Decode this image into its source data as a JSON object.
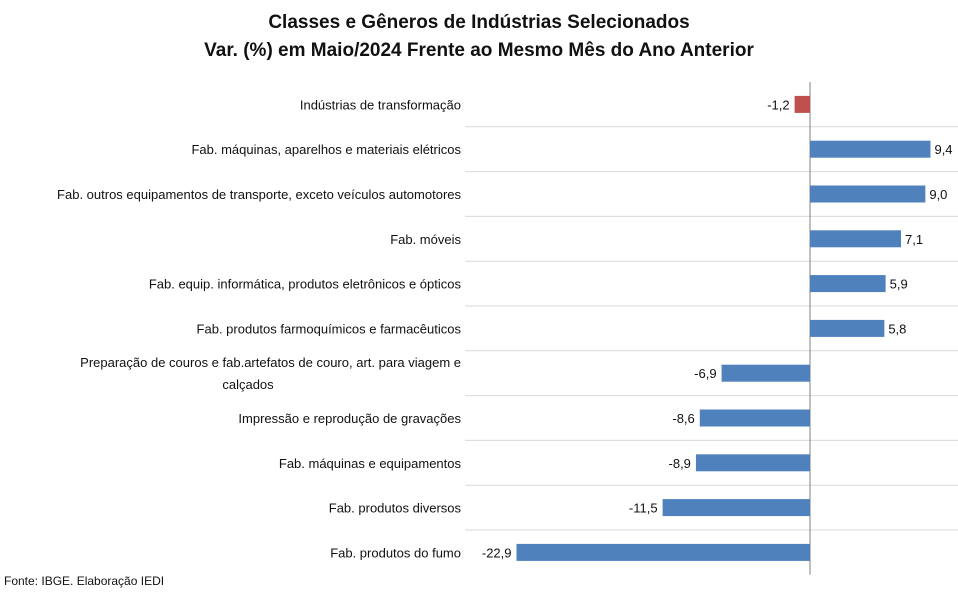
{
  "title_line1": "Classes e Gêneros de Indústrias Selecionados",
  "title_line2": "Var. (%) em Maio/2024 Frente ao Mesmo Mês do Ano Anterior",
  "source": "Fonte: IBGE. Elaboração IEDI",
  "colors": {
    "positive": "#4f81bd",
    "negative_highlight": "#c0504d",
    "grid": "#d9d9d9",
    "axis": "#808080"
  },
  "chart_data": {
    "type": "bar",
    "orientation": "horizontal",
    "title": "Classes e Gêneros de Indústrias Selecionados / Var. (%) em Maio/2024 Frente ao Mesmo Mês do Ano Anterior",
    "categories": [
      [
        "Indústrias de transformação"
      ],
      [
        "Fab. máquinas, aparelhos e materiais elétricos"
      ],
      [
        "Fab. outros equipamentos de transporte, exceto veículos automotores"
      ],
      [
        "Fab. móveis"
      ],
      [
        "Fab. equip. informática, produtos eletrônicos e ópticos"
      ],
      [
        "Fab. produtos farmoquímicos e farmacêuticos"
      ],
      [
        "Preparação de couros e fab.artefatos de couro, art. para viagem e",
        "calçados"
      ],
      [
        "Impressão e reprodução de gravações"
      ],
      [
        "Fab. máquinas e equipamentos"
      ],
      [
        "Fab. produtos diversos"
      ],
      [
        "Fab. produtos do fumo"
      ]
    ],
    "values": [
      -1.2,
      9.4,
      9.0,
      7.1,
      5.9,
      5.8,
      -6.9,
      -8.6,
      -8.9,
      -11.5,
      -22.9
    ],
    "value_labels": [
      "-1,2",
      "9,4",
      "9,0",
      "7,1",
      "5,9",
      "5,8",
      "-6,9",
      "-8,6",
      "-8,9",
      "-11,5",
      "-22,9"
    ],
    "highlight_index": 0,
    "xlim": [
      -22.9,
      9.4
    ]
  }
}
